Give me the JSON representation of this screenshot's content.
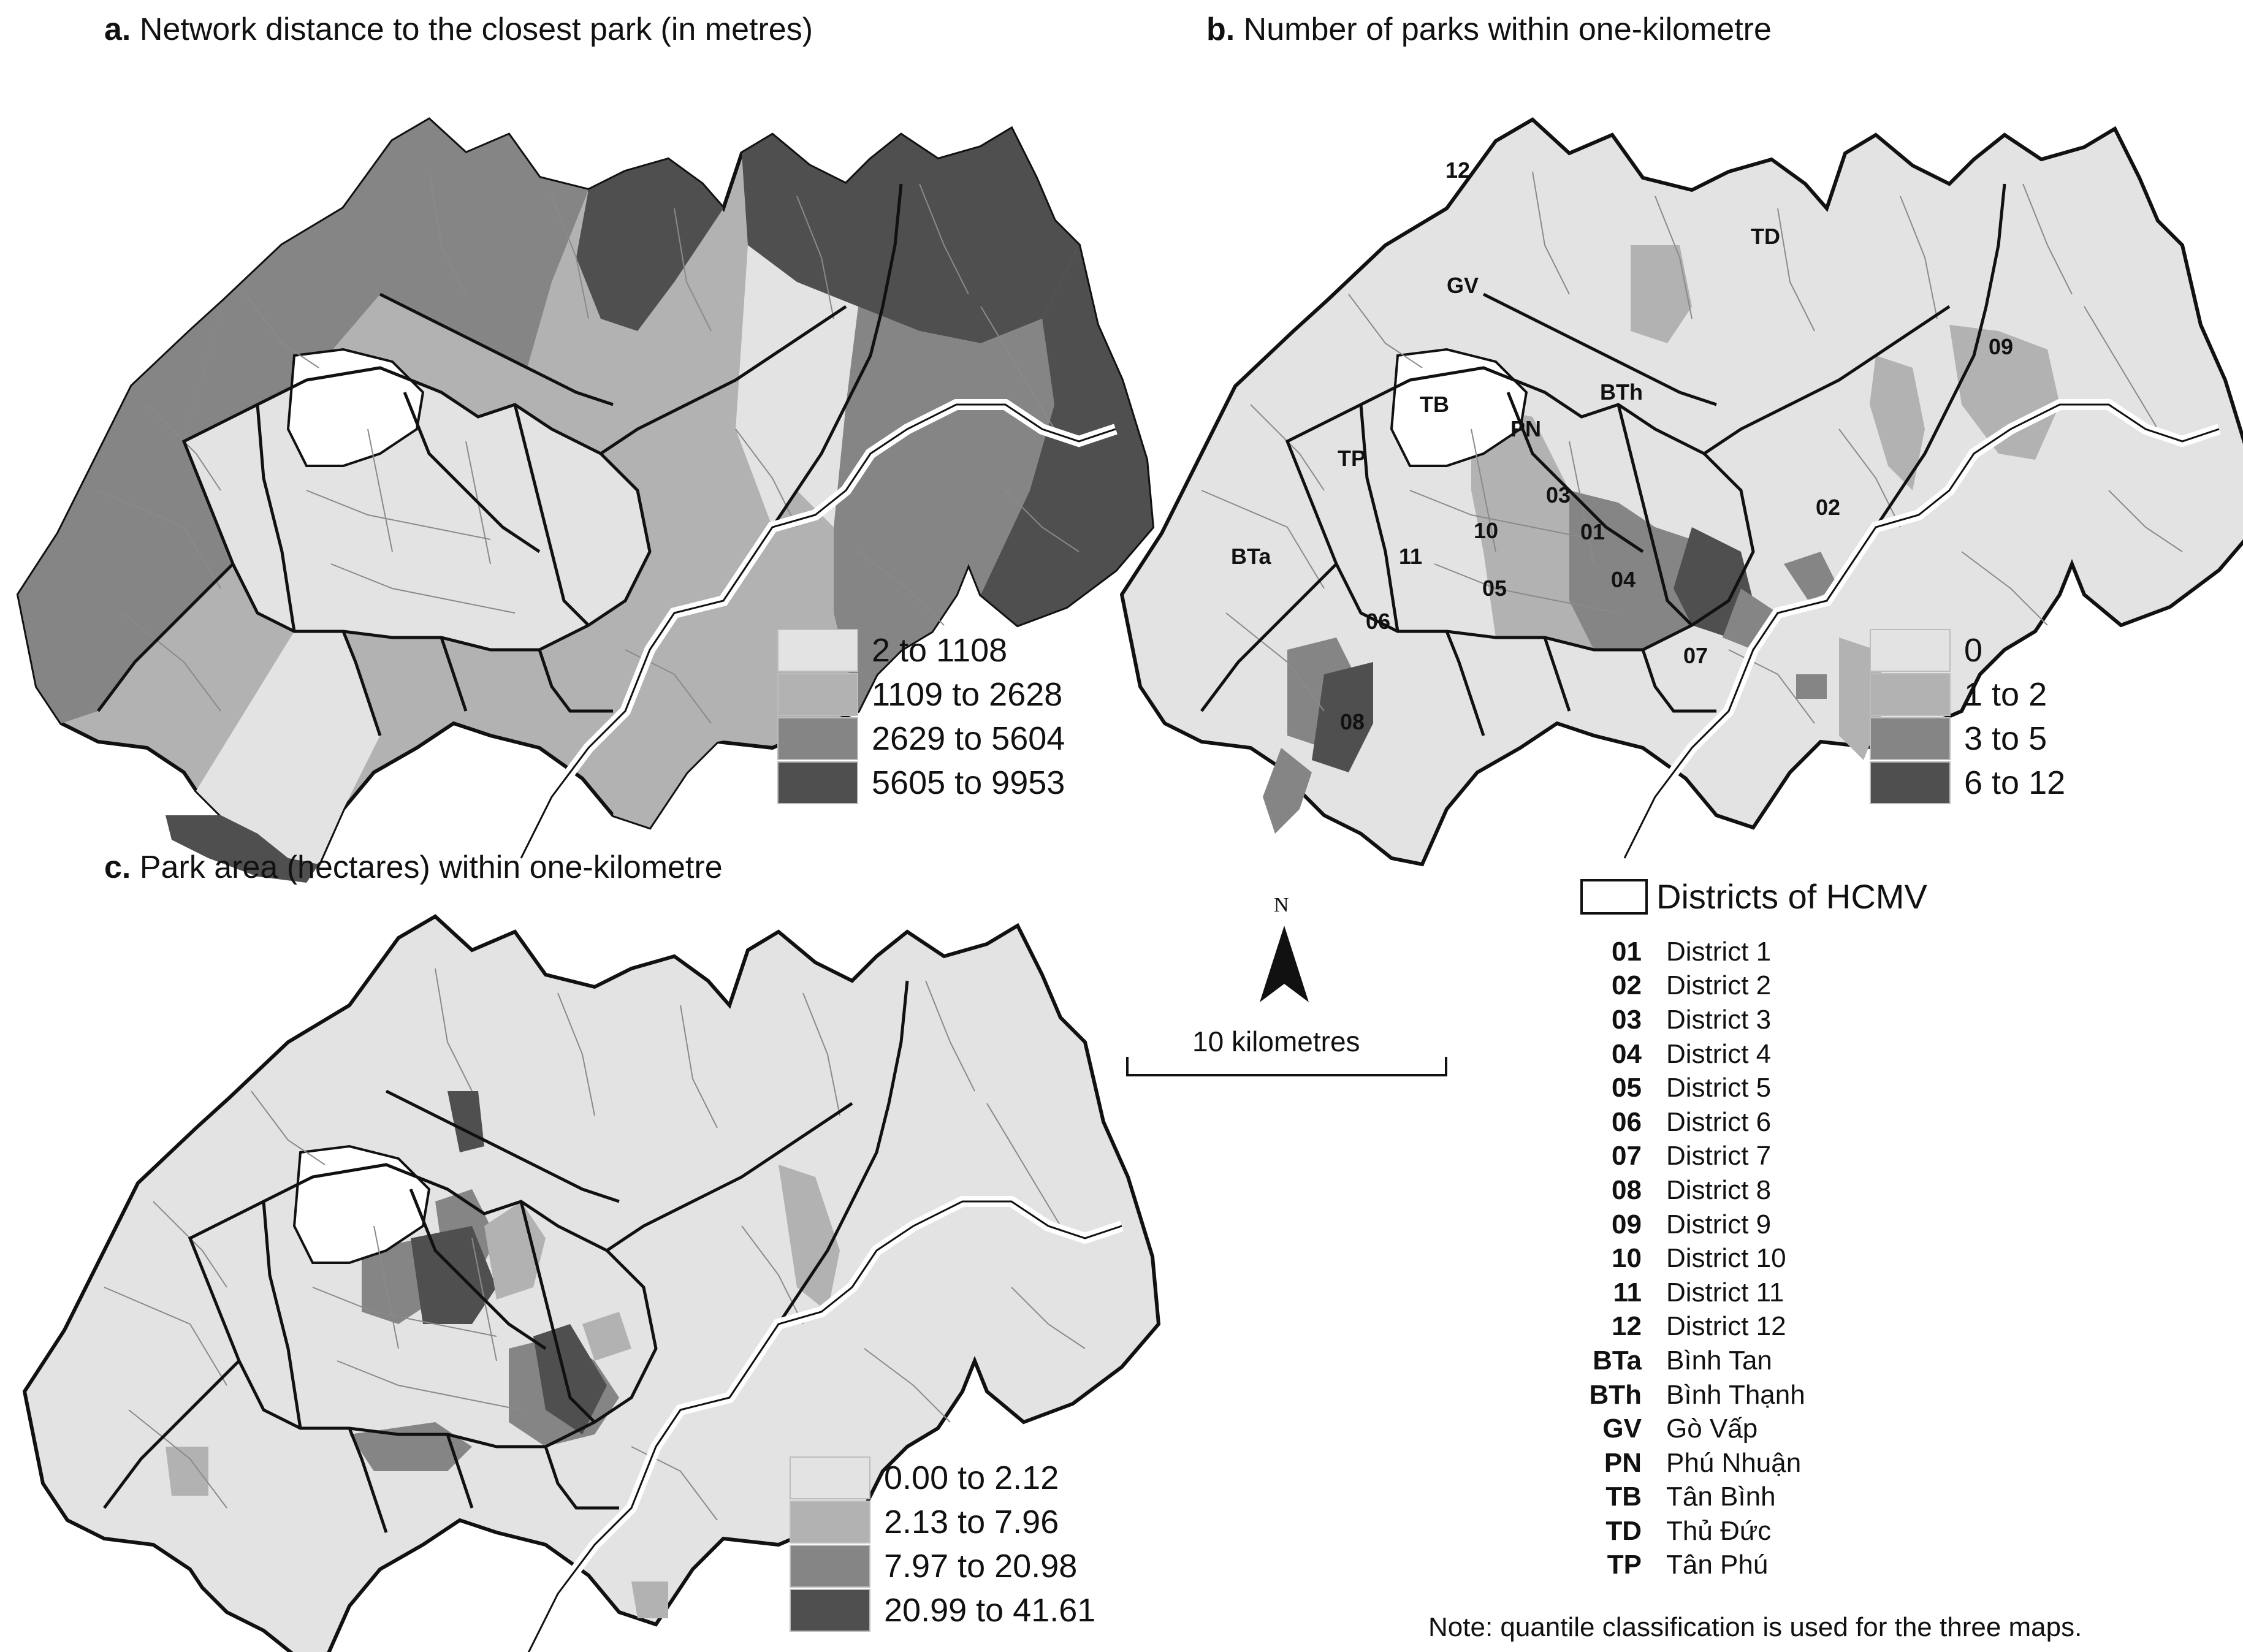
{
  "panels": [
    {
      "letter": "a.",
      "title": "Network distance to the closest park (in metres)",
      "legend": [
        "2 to 1108",
        "1109 to 2628",
        "2629 to 5604",
        "5605 to 9953"
      ]
    },
    {
      "letter": "b.",
      "title": "Number of parks within one-kilometre",
      "legend": [
        "0",
        "1 to 2",
        "3 to 5",
        "6 to 12"
      ]
    },
    {
      "letter": "c.",
      "title": "Park area (hectares) within one-kilometre",
      "legend": [
        "0.00 to 2.12",
        "2.13 to 7.96",
        "7.97 to 20.98",
        "20.99 to 41.61"
      ]
    }
  ],
  "class_colors": [
    "#e3e3e3",
    "#b2b2b2",
    "#858585",
    "#4f4f4f"
  ],
  "boundary_color": "#111111",
  "map_labels_b": [
    "12",
    "TD",
    "GV",
    "09",
    "TB",
    "BTh",
    "PN",
    "TP",
    "03",
    "02",
    "10",
    "01",
    "BTa",
    "11",
    "05",
    "04",
    "06",
    "07",
    "08"
  ],
  "north_label": "N",
  "scale_label": "10 kilometres",
  "districts_title": "Districts of HCMV",
  "districts": [
    {
      "code": "01",
      "name": "District 1"
    },
    {
      "code": "02",
      "name": "District 2"
    },
    {
      "code": "03",
      "name": "District 3"
    },
    {
      "code": "04",
      "name": "District 4"
    },
    {
      "code": "05",
      "name": "District 5"
    },
    {
      "code": "06",
      "name": "District 6"
    },
    {
      "code": "07",
      "name": "District 7"
    },
    {
      "code": "08",
      "name": "District 8"
    },
    {
      "code": "09",
      "name": "District 9"
    },
    {
      "code": "10",
      "name": "District 10"
    },
    {
      "code": "11",
      "name": "District 11"
    },
    {
      "code": "12",
      "name": "District 12"
    },
    {
      "code": "BTa",
      "name": "Bình Tan"
    },
    {
      "code": "BTh",
      "name": "Bình Thạnh"
    },
    {
      "code": "GV",
      "name": "Gò Vấp"
    },
    {
      "code": "PN",
      "name": "Phú Nhuận"
    },
    {
      "code": "TB",
      "name": "Tân Bình"
    },
    {
      "code": "TD",
      "name": "Thủ Đức"
    },
    {
      "code": "TP",
      "name": "Tân Phú"
    }
  ],
  "note": "Note: quantile classification is used for the three maps."
}
